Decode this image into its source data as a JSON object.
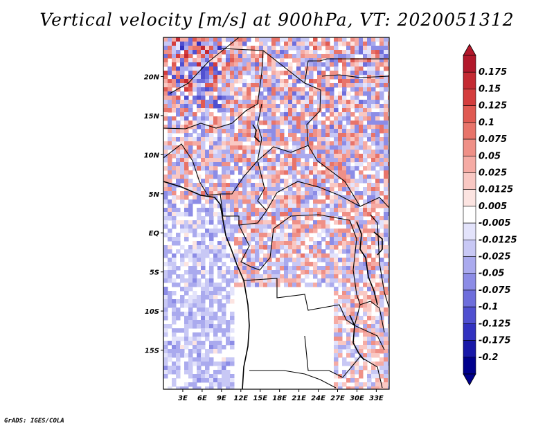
{
  "title": "Vertical velocity [m/s] at 900hPa, VT: 2020051312",
  "footer": "GrADS: IGES/COLA",
  "map": {
    "lon_range": [
      0,
      35
    ],
    "lat_range": [
      -20,
      25
    ],
    "x_ticks": [
      "3E",
      "6E",
      "9E",
      "12E",
      "15E",
      "18E",
      "21E",
      "24E",
      "27E",
      "30E",
      "33E"
    ],
    "x_tick_values": [
      3,
      6,
      9,
      12,
      15,
      18,
      21,
      24,
      27,
      30,
      33
    ],
    "y_ticks": [
      "20N",
      "15N",
      "10N",
      "5N",
      "EQ",
      "5S",
      "10S",
      "15S"
    ],
    "y_tick_values": [
      20,
      15,
      10,
      5,
      0,
      -5,
      -10,
      -15
    ]
  },
  "colorbar": {
    "labels": [
      "0.175",
      "0.15",
      "0.125",
      "0.1",
      "0.075",
      "0.05",
      "0.025",
      "0.0125",
      "0.005",
      "-0.005",
      "-0.0125",
      "-0.025",
      "-0.05",
      "-0.075",
      "-0.1",
      "-0.125",
      "-0.175",
      "-0.2"
    ],
    "colors": [
      "#b2182b",
      "#c42a32",
      "#d43d3d",
      "#e05a52",
      "#e8746a",
      "#ef9087",
      "#f5aba4",
      "#f9c8c3",
      "#fce4e1",
      "#ffffff",
      "#e3e3fb",
      "#c8c8f5",
      "#aaaaee",
      "#8c8ce6",
      "#6e6edc",
      "#5050d0",
      "#3232c0",
      "#1818a8",
      "#00008c"
    ]
  }
}
